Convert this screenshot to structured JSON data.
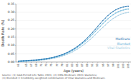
{
  "chart_data": {
    "type": "line",
    "xlabel": "Age (years)",
    "ylabel": "Death Rate (%)",
    "x": [
      62,
      63,
      64,
      65,
      66,
      67,
      68,
      69,
      70,
      71,
      72,
      73,
      74,
      75,
      76,
      77,
      78,
      79,
      80,
      81,
      82,
      83,
      84,
      85,
      86,
      87,
      88,
      89,
      90,
      91,
      92,
      93,
      94,
      95,
      96,
      97,
      98,
      99,
      100,
      101,
      102,
      103,
      104,
      105
    ],
    "series": [
      {
        "name": "Medicare",
        "color": "#1a6faf",
        "marker": "circle",
        "values": [
          0.005,
          0.006,
          0.007,
          0.008,
          0.009,
          0.01,
          0.011,
          0.012,
          0.014,
          0.016,
          0.018,
          0.02,
          0.023,
          0.026,
          0.03,
          0.034,
          0.039,
          0.044,
          0.05,
          0.057,
          0.065,
          0.074,
          0.083,
          0.094,
          0.106,
          0.118,
          0.132,
          0.147,
          0.163,
          0.18,
          0.197,
          0.215,
          0.233,
          0.25,
          0.266,
          0.281,
          0.294,
          0.305,
          0.315,
          0.322,
          0.328,
          0.332,
          0.335,
          0.337
        ]
      },
      {
        "name": "Blended",
        "color": "#5bafd6",
        "marker": "circle",
        "values": [
          0.004,
          0.005,
          0.006,
          0.007,
          0.008,
          0.009,
          0.01,
          0.011,
          0.013,
          0.015,
          0.017,
          0.019,
          0.022,
          0.025,
          0.028,
          0.032,
          0.037,
          0.042,
          0.048,
          0.054,
          0.062,
          0.07,
          0.079,
          0.089,
          0.1,
          0.112,
          0.124,
          0.138,
          0.153,
          0.168,
          0.184,
          0.2,
          0.216,
          0.232,
          0.247,
          0.261,
          0.274,
          0.285,
          0.295,
          0.303,
          0.309,
          0.314,
          0.318,
          0.32
        ]
      },
      {
        "name": "Vital Statistics",
        "color": "#9ecae1",
        "marker": "circle",
        "values": [
          0.004,
          0.004,
          0.005,
          0.006,
          0.007,
          0.007,
          0.008,
          0.009,
          0.011,
          0.012,
          0.014,
          0.016,
          0.018,
          0.021,
          0.024,
          0.027,
          0.031,
          0.036,
          0.041,
          0.047,
          0.054,
          0.061,
          0.069,
          0.078,
          0.088,
          0.099,
          0.11,
          0.123,
          0.136,
          0.15,
          0.165,
          0.18,
          0.195,
          0.21,
          0.224,
          0.238,
          0.251,
          0.262,
          0.272,
          0.281,
          0.288,
          0.293,
          0.297,
          0.3
        ]
      }
    ],
    "xlim": [
      61,
      106
    ],
    "xticks": [
      62,
      65,
      67,
      69,
      71,
      73,
      75,
      77,
      79,
      81,
      83,
      85,
      87,
      89,
      91,
      93,
      95,
      97,
      99,
      101,
      103,
      105
    ],
    "ylim": [
      0.0,
      0.35
    ],
    "yticks": [
      {
        "value": 0.0,
        "label": "0.00"
      },
      {
        "value": 0.05,
        "label": "0.05"
      },
      {
        "value": 0.1,
        "label": "0.10"
      },
      {
        "value": 0.15,
        "label": "0.15"
      },
      {
        "value": 0.2,
        "label": "0.20"
      },
      {
        "value": 0.25,
        "label": "0.25"
      },
      {
        "value": 0.3,
        "label": "0.30"
      },
      {
        "value": 0.35,
        "label": "0.35"
      }
    ],
    "grid": true,
    "footnote": [
      "Source: (1) SSA Period Life Table 2021; (2) CMS Medicare 2021 Statistics;",
      "(3) Blended = Credibility-weighted combination of Vital Statistics and Medicare."
    ]
  }
}
